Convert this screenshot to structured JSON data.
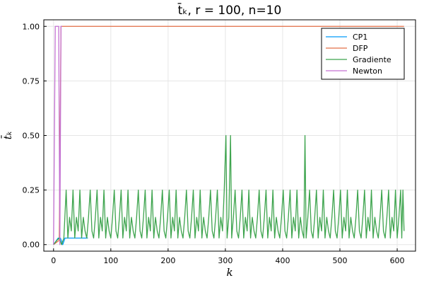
{
  "chart_data": {
    "type": "line",
    "title": "t̄ₖ,  r = 100, n=10",
    "xlabel": "k",
    "ylabel": "t̄ₖ",
    "xlim": [
      -17,
      632
    ],
    "ylim": [
      -0.03,
      1.03
    ],
    "xticks": [
      0,
      100,
      200,
      300,
      400,
      500,
      600
    ],
    "yticks": [
      0.0,
      0.25,
      0.5,
      0.75,
      1.0
    ],
    "ytick_labels": [
      "0.00",
      "0.25",
      "0.50",
      "0.75",
      "1.00"
    ],
    "grid": true,
    "legend_position": "top-right",
    "series": [
      {
        "name": "CP1",
        "color": "#009AFA",
        "points": [
          [
            0,
            0
          ],
          [
            4,
            0.015
          ],
          [
            8,
            0.03
          ],
          [
            12,
            0.03
          ],
          [
            16,
            0.0
          ],
          [
            20,
            0.03
          ],
          [
            30,
            0.03
          ],
          [
            40,
            0.03
          ],
          [
            50,
            0.03
          ],
          [
            60,
            0.03
          ]
        ]
      },
      {
        "name": "DFP",
        "color": "#E36F47",
        "points": [
          [
            0,
            0
          ],
          [
            5,
            0.01
          ],
          [
            10,
            0.02
          ],
          [
            13,
            1.0
          ],
          [
            15,
            1.0
          ],
          [
            100,
            1.0
          ],
          [
            200,
            1.0
          ],
          [
            300,
            1.0
          ],
          [
            400,
            1.0
          ],
          [
            500,
            1.0
          ],
          [
            612,
            1.0
          ]
        ]
      },
      {
        "name": "Gradiente",
        "color": "#3EA44E",
        "points": [
          [
            0,
            0
          ],
          [
            3,
            0.01
          ],
          [
            6,
            0.02
          ],
          [
            10,
            0.03
          ],
          [
            14,
            0.0
          ],
          [
            18,
            0.03
          ],
          [
            22,
            0.25
          ],
          [
            25,
            0.03
          ],
          [
            28,
            0.125
          ],
          [
            31,
            0.0625
          ],
          [
            34,
            0.25
          ],
          [
            37,
            0.03
          ],
          [
            40,
            0.125
          ],
          [
            43,
            0.0625
          ],
          [
            46,
            0.25
          ],
          [
            49,
            0.03
          ],
          [
            52,
            0.125
          ],
          [
            55,
            0.0625
          ],
          [
            58,
            0.03
          ],
          [
            61,
            0.125
          ],
          [
            64,
            0.25
          ],
          [
            67,
            0.0625
          ],
          [
            70,
            0.03
          ],
          [
            73,
            0.125
          ],
          [
            76,
            0.25
          ],
          [
            79,
            0.03
          ],
          [
            82,
            0.125
          ],
          [
            85,
            0.0625
          ],
          [
            88,
            0.25
          ],
          [
            91,
            0.03
          ],
          [
            94,
            0.125
          ],
          [
            97,
            0.0625
          ],
          [
            100,
            0.03
          ],
          [
            103,
            0.125
          ],
          [
            106,
            0.25
          ],
          [
            109,
            0.0625
          ],
          [
            112,
            0.03
          ],
          [
            115,
            0.125
          ],
          [
            118,
            0.25
          ],
          [
            121,
            0.03
          ],
          [
            124,
            0.125
          ],
          [
            127,
            0.0625
          ],
          [
            130,
            0.25
          ],
          [
            133,
            0.03
          ],
          [
            136,
            0.125
          ],
          [
            139,
            0.0625
          ],
          [
            142,
            0.03
          ],
          [
            145,
            0.125
          ],
          [
            148,
            0.25
          ],
          [
            151,
            0.0625
          ],
          [
            154,
            0.03
          ],
          [
            157,
            0.125
          ],
          [
            160,
            0.25
          ],
          [
            163,
            0.03
          ],
          [
            166,
            0.125
          ],
          [
            169,
            0.0625
          ],
          [
            172,
            0.25
          ],
          [
            175,
            0.03
          ],
          [
            178,
            0.125
          ],
          [
            181,
            0.0625
          ],
          [
            184,
            0.03
          ],
          [
            187,
            0.125
          ],
          [
            190,
            0.25
          ],
          [
            193,
            0.0625
          ],
          [
            196,
            0.03
          ],
          [
            199,
            0.125
          ],
          [
            202,
            0.25
          ],
          [
            205,
            0.03
          ],
          [
            208,
            0.125
          ],
          [
            211,
            0.0625
          ],
          [
            214,
            0.25
          ],
          [
            217,
            0.03
          ],
          [
            220,
            0.125
          ],
          [
            223,
            0.0625
          ],
          [
            226,
            0.03
          ],
          [
            229,
            0.125
          ],
          [
            232,
            0.25
          ],
          [
            235,
            0.0625
          ],
          [
            238,
            0.03
          ],
          [
            241,
            0.125
          ],
          [
            244,
            0.25
          ],
          [
            247,
            0.03
          ],
          [
            250,
            0.125
          ],
          [
            253,
            0.0625
          ],
          [
            256,
            0.25
          ],
          [
            259,
            0.03
          ],
          [
            262,
            0.125
          ],
          [
            265,
            0.0625
          ],
          [
            268,
            0.03
          ],
          [
            271,
            0.125
          ],
          [
            274,
            0.25
          ],
          [
            277,
            0.0625
          ],
          [
            280,
            0.03
          ],
          [
            283,
            0.125
          ],
          [
            286,
            0.25
          ],
          [
            289,
            0.03
          ],
          [
            292,
            0.125
          ],
          [
            295,
            0.0625
          ],
          [
            298,
            0.25
          ],
          [
            301,
            0.5
          ],
          [
            303,
            0.03
          ],
          [
            306,
            0.125
          ],
          [
            309,
            0.5
          ],
          [
            311,
            0.03
          ],
          [
            314,
            0.125
          ],
          [
            317,
            0.25
          ],
          [
            320,
            0.0625
          ],
          [
            323,
            0.03
          ],
          [
            326,
            0.125
          ],
          [
            329,
            0.25
          ],
          [
            332,
            0.03
          ],
          [
            335,
            0.125
          ],
          [
            338,
            0.0625
          ],
          [
            341,
            0.25
          ],
          [
            344,
            0.03
          ],
          [
            347,
            0.125
          ],
          [
            350,
            0.0625
          ],
          [
            353,
            0.03
          ],
          [
            356,
            0.125
          ],
          [
            359,
            0.25
          ],
          [
            362,
            0.0625
          ],
          [
            365,
            0.03
          ],
          [
            368,
            0.125
          ],
          [
            371,
            0.25
          ],
          [
            374,
            0.03
          ],
          [
            377,
            0.125
          ],
          [
            380,
            0.0625
          ],
          [
            383,
            0.25
          ],
          [
            386,
            0.03
          ],
          [
            389,
            0.125
          ],
          [
            392,
            0.0625
          ],
          [
            395,
            0.03
          ],
          [
            398,
            0.125
          ],
          [
            401,
            0.25
          ],
          [
            404,
            0.0625
          ],
          [
            407,
            0.03
          ],
          [
            410,
            0.125
          ],
          [
            413,
            0.25
          ],
          [
            416,
            0.03
          ],
          [
            419,
            0.125
          ],
          [
            422,
            0.0625
          ],
          [
            425,
            0.25
          ],
          [
            428,
            0.03
          ],
          [
            431,
            0.125
          ],
          [
            434,
            0.0625
          ],
          [
            437,
            0.03
          ],
          [
            439,
            0.5
          ],
          [
            441,
            0.03
          ],
          [
            444,
            0.125
          ],
          [
            447,
            0.25
          ],
          [
            450,
            0.0625
          ],
          [
            453,
            0.03
          ],
          [
            456,
            0.125
          ],
          [
            459,
            0.25
          ],
          [
            462,
            0.03
          ],
          [
            465,
            0.125
          ],
          [
            468,
            0.0625
          ],
          [
            471,
            0.25
          ],
          [
            474,
            0.03
          ],
          [
            477,
            0.125
          ],
          [
            480,
            0.0625
          ],
          [
            483,
            0.03
          ],
          [
            486,
            0.125
          ],
          [
            489,
            0.25
          ],
          [
            492,
            0.0625
          ],
          [
            495,
            0.03
          ],
          [
            498,
            0.125
          ],
          [
            501,
            0.25
          ],
          [
            504,
            0.03
          ],
          [
            507,
            0.125
          ],
          [
            510,
            0.0625
          ],
          [
            513,
            0.25
          ],
          [
            516,
            0.03
          ],
          [
            519,
            0.125
          ],
          [
            522,
            0.0625
          ],
          [
            525,
            0.03
          ],
          [
            528,
            0.125
          ],
          [
            531,
            0.25
          ],
          [
            534,
            0.0625
          ],
          [
            537,
            0.03
          ],
          [
            540,
            0.125
          ],
          [
            543,
            0.25
          ],
          [
            546,
            0.03
          ],
          [
            549,
            0.125
          ],
          [
            552,
            0.0625
          ],
          [
            555,
            0.25
          ],
          [
            558,
            0.03
          ],
          [
            561,
            0.125
          ],
          [
            564,
            0.0625
          ],
          [
            567,
            0.03
          ],
          [
            570,
            0.125
          ],
          [
            573,
            0.25
          ],
          [
            576,
            0.0625
          ],
          [
            579,
            0.03
          ],
          [
            582,
            0.125
          ],
          [
            585,
            0.25
          ],
          [
            588,
            0.03
          ],
          [
            591,
            0.125
          ],
          [
            594,
            0.0625
          ],
          [
            597,
            0.25
          ],
          [
            600,
            0.03
          ],
          [
            603,
            0.125
          ],
          [
            606,
            0.25
          ],
          [
            608,
            0.03
          ],
          [
            610,
            0.25
          ],
          [
            612,
            0.0625
          ]
        ]
      },
      {
        "name": "Newton",
        "color": "#C371D2",
        "points": [
          [
            0,
            0
          ],
          [
            3,
            1.0
          ],
          [
            6,
            1.0
          ],
          [
            9,
            1.0
          ],
          [
            11,
            0.0
          ],
          [
            13,
            1.0
          ],
          [
            15,
            1.0
          ]
        ]
      }
    ]
  }
}
